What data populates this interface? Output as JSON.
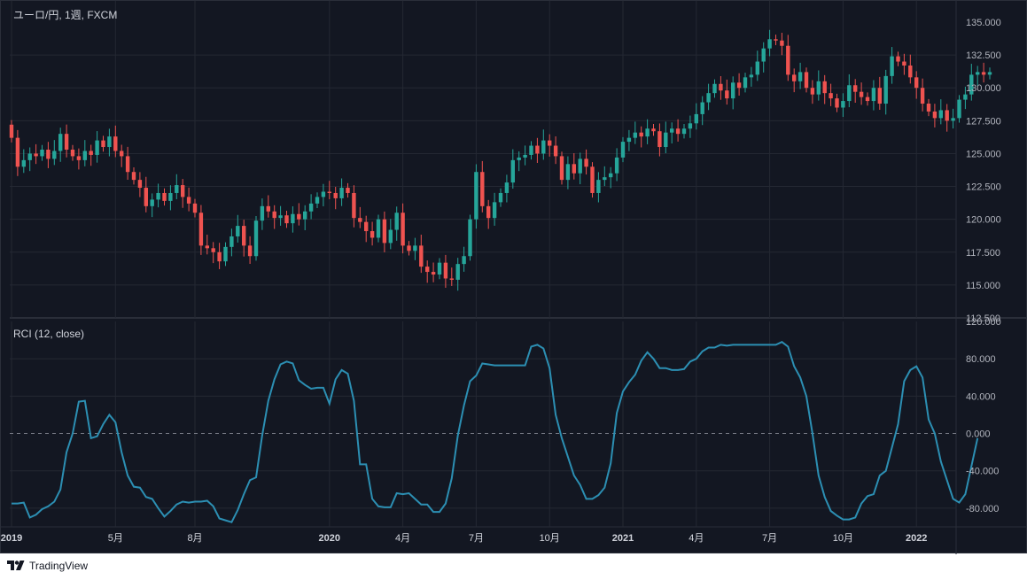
{
  "footer": {
    "brand": "TradingView",
    "logo_icon": "tradingview-logo-icon"
  },
  "colors": {
    "background": "#131722",
    "grid": "#242833",
    "up": "#26a69a",
    "down": "#ef5350",
    "rci_line": "#2c8fb3",
    "axis_text": "#b2b5be"
  },
  "chart_data": [
    {
      "type": "candlestick",
      "title": "ユーロ/円, 1週, FXCM",
      "ylim": [
        112.5,
        135.0
      ],
      "y_ticks": [
        "135.000",
        "132.500",
        "130.000",
        "127.500",
        "125.000",
        "122.500",
        "120.000",
        "117.500",
        "115.000",
        "112.500"
      ],
      "x_ticks": [
        {
          "label": "2019",
          "i": 0,
          "bold": true
        },
        {
          "label": "5月",
          "i": 17,
          "bold": false
        },
        {
          "label": "8月",
          "i": 30,
          "bold": false
        },
        {
          "label": "2020",
          "i": 52,
          "bold": true
        },
        {
          "label": "4月",
          "i": 64,
          "bold": false
        },
        {
          "label": "7月",
          "i": 76,
          "bold": false
        },
        {
          "label": "10月",
          "i": 88,
          "bold": false
        },
        {
          "label": "2021",
          "i": 100,
          "bold": true
        },
        {
          "label": "4月",
          "i": 112,
          "bold": false
        },
        {
          "label": "7月",
          "i": 124,
          "bold": false
        },
        {
          "label": "10月",
          "i": 136,
          "bold": false
        },
        {
          "label": "2022",
          "i": 148,
          "bold": true
        }
      ],
      "close": [
        126.2,
        124.0,
        124.5,
        125.0,
        124.8,
        125.3,
        124.6,
        125.2,
        126.5,
        125.3,
        124.8,
        124.5,
        125.2,
        124.9,
        126.0,
        125.5,
        126.3,
        125.2,
        124.8,
        123.6,
        123.0,
        122.4,
        121.0,
        121.5,
        122.0,
        121.4,
        122.0,
        122.6,
        121.7,
        121.2,
        120.5,
        118.0,
        117.8,
        117.5,
        116.8,
        117.9,
        118.7,
        119.5,
        118.0,
        117.2,
        119.9,
        121.0,
        120.6,
        120.1,
        120.3,
        119.7,
        120.4,
        120.0,
        120.6,
        121.2,
        121.7,
        122.1,
        122.0,
        121.6,
        122.4,
        122.0,
        120.1,
        119.8,
        119.1,
        118.6,
        120.0,
        118.2,
        119.2,
        120.5,
        118.0,
        117.6,
        118.0,
        116.4,
        116.0,
        115.8,
        116.7,
        115.5,
        115.4,
        116.6,
        117.2,
        120.0,
        123.6,
        121.0,
        120.1,
        121.3,
        122.0,
        122.8,
        124.5,
        124.7,
        124.9,
        125.6,
        125.0,
        126.0,
        125.6,
        124.8,
        123.0,
        124.2,
        123.5,
        124.6,
        124.0,
        122.0,
        123.0,
        123.2,
        123.5,
        124.7,
        125.9,
        126.2,
        126.6,
        126.3,
        126.9,
        126.7,
        125.5,
        126.6,
        126.9,
        126.5,
        126.9,
        127.3,
        128.0,
        128.9,
        129.6,
        130.3,
        129.8,
        129.2,
        130.4,
        130.0,
        130.8,
        131.0,
        132.0,
        133.0,
        133.7,
        133.6,
        133.2,
        131.0,
        130.5,
        131.2,
        130.0,
        129.5,
        130.5,
        129.6,
        129.2,
        128.5,
        129.0,
        130.2,
        129.7,
        129.3,
        129.0,
        130.0,
        128.8,
        130.9,
        132.4,
        132.0,
        131.7,
        130.8,
        130.0,
        128.8,
        128.2,
        127.7,
        128.3,
        127.5,
        127.7,
        129.1,
        129.5,
        131.0,
        131.2,
        131.0,
        131.2
      ],
      "open": [
        127.2,
        126.2,
        124.0,
        124.5,
        125.0,
        124.8,
        125.3,
        124.6,
        125.2,
        126.5,
        125.3,
        124.8,
        124.5,
        125.2,
        124.9,
        126.0,
        125.5,
        126.3,
        125.2,
        124.8,
        123.6,
        123.0,
        122.4,
        121.0,
        121.5,
        122.0,
        121.4,
        122.0,
        122.6,
        121.7,
        121.2,
        120.5,
        118.0,
        117.8,
        117.5,
        116.8,
        117.9,
        118.7,
        119.5,
        118.0,
        117.2,
        119.9,
        121.0,
        120.6,
        120.1,
        120.3,
        119.7,
        120.4,
        120.0,
        120.6,
        121.2,
        121.7,
        122.1,
        122.0,
        121.6,
        122.4,
        122.0,
        120.1,
        119.8,
        119.1,
        118.6,
        120.0,
        118.2,
        119.2,
        120.5,
        118.0,
        117.6,
        118.0,
        116.4,
        116.0,
        115.8,
        116.7,
        115.5,
        115.4,
        116.6,
        117.2,
        120.0,
        123.6,
        121.0,
        120.1,
        121.3,
        122.0,
        122.8,
        124.5,
        124.7,
        124.9,
        125.6,
        125.0,
        126.0,
        125.6,
        124.8,
        123.0,
        124.2,
        123.5,
        124.6,
        124.0,
        122.0,
        123.0,
        123.2,
        123.5,
        124.7,
        125.9,
        126.2,
        126.6,
        126.3,
        126.9,
        126.7,
        125.5,
        126.6,
        126.9,
        126.5,
        126.9,
        127.3,
        128.0,
        128.9,
        129.6,
        130.3,
        129.8,
        129.2,
        130.4,
        130.0,
        130.8,
        131.0,
        132.0,
        133.0,
        133.7,
        133.6,
        133.2,
        131.0,
        130.5,
        131.2,
        130.0,
        129.5,
        130.5,
        129.6,
        129.2,
        128.5,
        129.0,
        130.2,
        129.7,
        129.3,
        129.0,
        130.0,
        128.8,
        130.9,
        132.4,
        132.0,
        131.7,
        130.8,
        130.0,
        128.8,
        128.2,
        127.7,
        128.3,
        127.5,
        127.7,
        129.1,
        129.5,
        131.0,
        131.2,
        131.0
      ]
    },
    {
      "type": "line",
      "title": "RCI (12, close)",
      "ylim": [
        -100.0,
        120.0
      ],
      "y_ticks": [
        "120.000",
        "80.000",
        "40.000",
        "0.000",
        "-40.000",
        "-80.000"
      ],
      "zero_line": 0.0,
      "series": [
        {
          "values": [
            -75,
            -75,
            -74,
            -90,
            -87,
            -81,
            -78,
            -73,
            -60,
            -20,
            0,
            34,
            35,
            -5,
            -3,
            10,
            20,
            12,
            -20,
            -45,
            -57,
            -58,
            -68,
            -70,
            -80,
            -89,
            -83,
            -76,
            -73,
            -74,
            -73,
            -73,
            -72,
            -78,
            -91,
            -93,
            -95,
            -82,
            -65,
            -50,
            -47,
            -2,
            35,
            58,
            74,
            77,
            75,
            57,
            52,
            48,
            49,
            49,
            32,
            58,
            68,
            64,
            35,
            -33,
            -33,
            -70,
            -78,
            -79,
            -79,
            -64,
            -65,
            -64,
            -70,
            -76,
            -76,
            -84,
            -84,
            -75,
            -48,
            -2,
            30,
            56,
            62,
            75,
            74,
            73,
            73,
            73,
            73,
            73,
            73,
            93,
            95,
            91,
            70,
            20,
            -5,
            -25,
            -45,
            -55,
            -70,
            -70,
            -66,
            -58,
            -32,
            22,
            45,
            55,
            63,
            78,
            87,
            80,
            70,
            70,
            68,
            68,
            69,
            77,
            80,
            88,
            92,
            92,
            95,
            94,
            95,
            95,
            95,
            95,
            95,
            95,
            95,
            95,
            98,
            93,
            72,
            60,
            40,
            0,
            -45,
            -68,
            -83,
            -88,
            -92,
            -92,
            -90,
            -75,
            -67,
            -65,
            -45,
            -40,
            -15,
            10,
            56,
            68,
            72,
            60,
            15,
            0,
            -30,
            -50,
            -70,
            -74,
            -65,
            -35,
            -5
          ]
        }
      ]
    }
  ]
}
